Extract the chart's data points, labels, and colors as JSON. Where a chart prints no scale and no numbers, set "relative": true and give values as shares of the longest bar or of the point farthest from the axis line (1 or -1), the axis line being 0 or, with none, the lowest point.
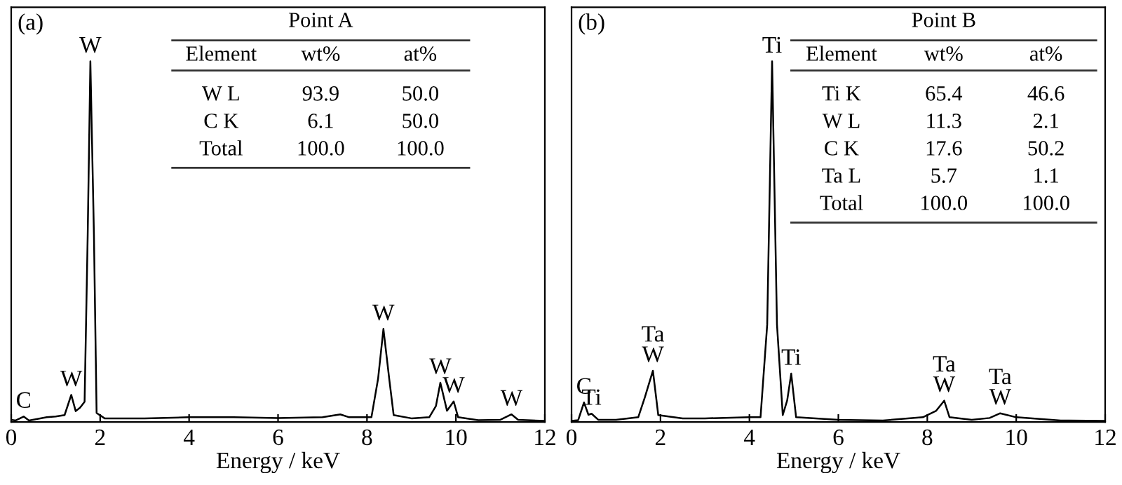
{
  "chart_data": [
    {
      "type": "line",
      "title": "(a)",
      "xlabel": "Energy / keV",
      "relative": true,
      "xlim": [
        0,
        12
      ],
      "xticks": [
        0,
        2,
        4,
        6,
        8,
        10,
        12
      ],
      "tick_labels": "x",
      "grid": false,
      "color": "#000000",
      "x": [
        0,
        0.1,
        0.28,
        0.4,
        0.8,
        1.0,
        1.2,
        1.35,
        1.45,
        1.55,
        1.65,
        1.72,
        1.78,
        1.86,
        1.92,
        2.1,
        3,
        4,
        5,
        6,
        7,
        7.4,
        7.6,
        8.1,
        8.25,
        8.37,
        8.5,
        8.6,
        9.0,
        9.4,
        9.55,
        9.65,
        9.8,
        9.95,
        10.05,
        10.5,
        11,
        11.25,
        11.4,
        12
      ],
      "values": [
        0.006,
        0.004,
        0.015,
        0.004,
        0.013,
        0.015,
        0.019,
        0.075,
        0.03,
        0.04,
        0.056,
        0.52,
        1.0,
        0.52,
        0.025,
        0.01,
        0.01,
        0.013,
        0.013,
        0.011,
        0.013,
        0.021,
        0.013,
        0.013,
        0.12,
        0.258,
        0.12,
        0.019,
        0.01,
        0.013,
        0.044,
        0.109,
        0.031,
        0.057,
        0.013,
        0.005,
        0.006,
        0.021,
        0.006,
        0.003
      ],
      "annotations": [
        {
          "text": "C",
          "x": 0.28,
          "y": 0.015
        },
        {
          "text": "W",
          "x": 1.35,
          "y": 0.075
        },
        {
          "text": "W",
          "x": 1.78,
          "y": 1.0
        },
        {
          "text": "W",
          "x": 8.37,
          "y": 0.258
        },
        {
          "text": "W",
          "x": 9.65,
          "y": 0.109
        },
        {
          "text": "W",
          "x": 9.95,
          "y": 0.057
        },
        {
          "text": "W",
          "x": 11.25,
          "y": 0.021
        },
        "Point A",
        "Element",
        "wt%",
        "at%",
        "W L",
        "93.9",
        "50.0",
        "C K",
        "6.1",
        "50.0",
        "Total",
        "100.0",
        "100.0"
      ]
    },
    {
      "type": "line",
      "title": "(b)",
      "xlabel": "Energy / keV",
      "relative": true,
      "xlim": [
        0,
        12
      ],
      "xticks": [
        0,
        2,
        4,
        6,
        8,
        10,
        12
      ],
      "tick_labels": "x",
      "grid": false,
      "color": "#000000",
      "x": [
        0,
        0.15,
        0.28,
        0.38,
        0.45,
        0.6,
        1.0,
        1.5,
        1.65,
        1.83,
        1.95,
        2.5,
        3,
        4,
        4.25,
        4.4,
        4.51,
        4.62,
        4.75,
        4.85,
        4.94,
        5.05,
        6,
        7,
        7.9,
        8.2,
        8.38,
        8.5,
        9,
        9.4,
        9.64,
        10,
        11,
        12
      ],
      "values": [
        0.003,
        0.005,
        0.054,
        0.02,
        0.023,
        0.006,
        0.006,
        0.013,
        0.069,
        0.142,
        0.019,
        0.01,
        0.01,
        0.013,
        0.013,
        0.27,
        1.0,
        0.27,
        0.019,
        0.06,
        0.134,
        0.013,
        0.006,
        0.004,
        0.013,
        0.031,
        0.059,
        0.013,
        0.006,
        0.011,
        0.024,
        0.013,
        0.004,
        0.003
      ],
      "annotations": [
        {
          "text": "C",
          "x": 0.28,
          "y": 0.054
        },
        {
          "text": "Ti",
          "x": 0.45,
          "y": 0.023
        },
        {
          "text": "Ta\nW",
          "x": 1.83,
          "y": 0.142
        },
        {
          "text": "Ti",
          "x": 4.51,
          "y": 1.0
        },
        {
          "text": "Ti",
          "x": 4.94,
          "y": 0.134
        },
        {
          "text": "Ta\nW",
          "x": 8.38,
          "y": 0.059
        },
        {
          "text": "Ta\nW",
          "x": 9.64,
          "y": 0.024
        },
        "Point B",
        "Element",
        "wt%",
        "at%",
        "Ti K",
        "65.4",
        "46.6",
        "W L",
        "11.3",
        "2.1",
        "C K",
        "17.6",
        "50.2",
        "Ta L",
        "5.7",
        "1.1",
        "Total",
        "100.0",
        "100.0"
      ]
    }
  ]
}
